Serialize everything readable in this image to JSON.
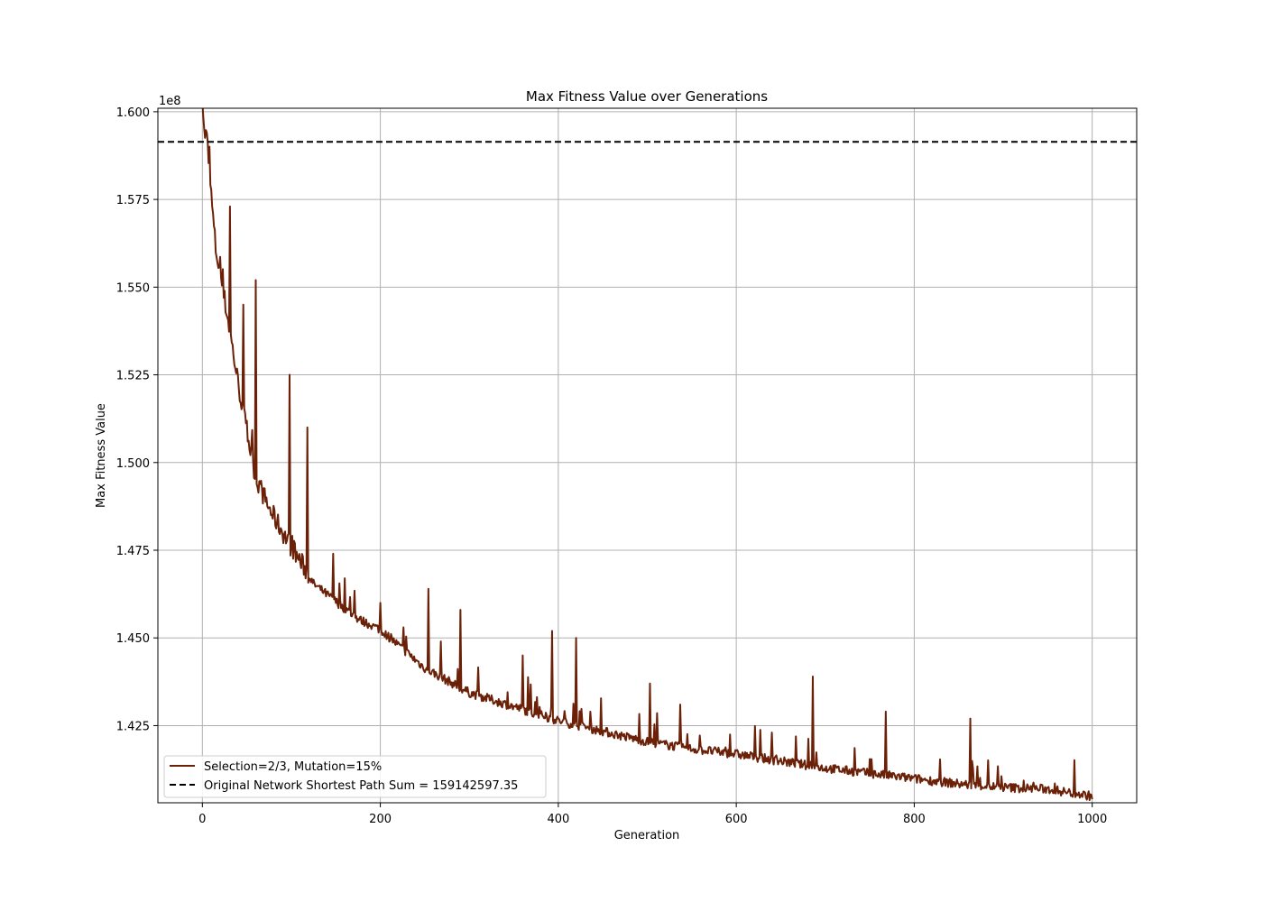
{
  "chart_data": {
    "type": "line",
    "title": "Max Fitness Value over Generations",
    "xlabel": "Generation",
    "ylabel": "Max Fitness Value",
    "y_offset_label": "1e8",
    "xlim": [
      -50,
      1050
    ],
    "ylim": [
      140300000,
      160100000
    ],
    "x_ticks": [
      0,
      200,
      400,
      600,
      800,
      1000
    ],
    "y_ticks": [
      142500000,
      145000000,
      147500000,
      150000000,
      152500000,
      155000000,
      157500000,
      160000000
    ],
    "y_tick_labels": [
      "1.425",
      "1.450",
      "1.475",
      "1.500",
      "1.525",
      "1.550",
      "1.575",
      "1.600"
    ],
    "grid": true,
    "legend_position": "lower-left",
    "series": [
      {
        "name": "Selection=2/3, Mutation=15%",
        "color": "#6b2108",
        "style": "solid",
        "trend_anchors": [
          [
            0,
            160500000
          ],
          [
            2,
            159300000
          ],
          [
            5,
            159200000
          ],
          [
            10,
            157500000
          ],
          [
            15,
            156000000
          ],
          [
            20,
            155300000
          ],
          [
            30,
            153800000
          ],
          [
            40,
            152200000
          ],
          [
            50,
            150800000
          ],
          [
            60,
            149500000
          ],
          [
            75,
            148600000
          ],
          [
            100,
            147500000
          ],
          [
            125,
            146500000
          ],
          [
            150,
            146000000
          ],
          [
            175,
            145500000
          ],
          [
            200,
            145200000
          ],
          [
            250,
            144100000
          ],
          [
            300,
            143400000
          ],
          [
            350,
            143000000
          ],
          [
            400,
            142600000
          ],
          [
            450,
            142300000
          ],
          [
            500,
            142000000
          ],
          [
            550,
            141800000
          ],
          [
            600,
            141650000
          ],
          [
            650,
            141450000
          ],
          [
            700,
            141250000
          ],
          [
            750,
            141100000
          ],
          [
            800,
            140950000
          ],
          [
            850,
            140800000
          ],
          [
            900,
            140700000
          ],
          [
            950,
            140650000
          ],
          [
            1000,
            140450000
          ]
        ],
        "spikes": [
          [
            31,
            157300000
          ],
          [
            46,
            154500000
          ],
          [
            60,
            155200000
          ],
          [
            98,
            152500000
          ],
          [
            118,
            151000000
          ],
          [
            147,
            147400000
          ],
          [
            160,
            146700000
          ],
          [
            200,
            146000000
          ],
          [
            226,
            145300000
          ],
          [
            254,
            146400000
          ],
          [
            268,
            144900000
          ],
          [
            290,
            145800000
          ],
          [
            360,
            144500000
          ],
          [
            393,
            145200000
          ],
          [
            420,
            145000000
          ],
          [
            503,
            143700000
          ],
          [
            537,
            143100000
          ],
          [
            686,
            143900000
          ],
          [
            768,
            142900000
          ],
          [
            863,
            142700000
          ]
        ]
      },
      {
        "name": "Original Network Shortest Path Sum = 159142597.35",
        "color": "#000000",
        "style": "dashed",
        "value": 159142597.35
      }
    ]
  }
}
